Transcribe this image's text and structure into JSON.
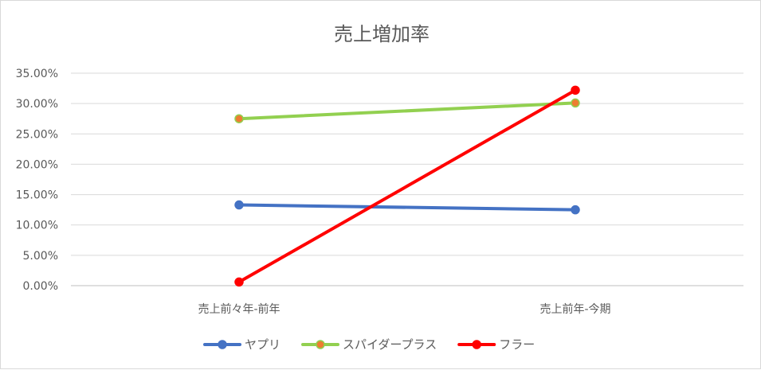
{
  "chart_data": {
    "type": "line",
    "title": "売上増加率",
    "xlabel": "",
    "ylabel": "",
    "categories": [
      "売上前々年-前年",
      "売上前年-今期"
    ],
    "ylim": [
      0,
      0.35
    ],
    "y_tick_step": 0.05,
    "y_tick_labels": [
      "0.00%",
      "5.00%",
      "10.00%",
      "15.00%",
      "20.00%",
      "25.00%",
      "30.00%",
      "35.00%"
    ],
    "grid": true,
    "legend_position": "bottom",
    "series": [
      {
        "name": "ヤプリ",
        "values": [
          0.133,
          0.125
        ],
        "color": "#4472c4",
        "marker_fill": "#4472c4"
      },
      {
        "name": "スパイダープラス",
        "values": [
          0.275,
          0.301
        ],
        "color": "#92d050",
        "marker_fill": "#ed7d31"
      },
      {
        "name": "フラー",
        "values": [
          0.006,
          0.322
        ],
        "color": "#ff0000",
        "marker_fill": "#ff0000"
      }
    ]
  }
}
